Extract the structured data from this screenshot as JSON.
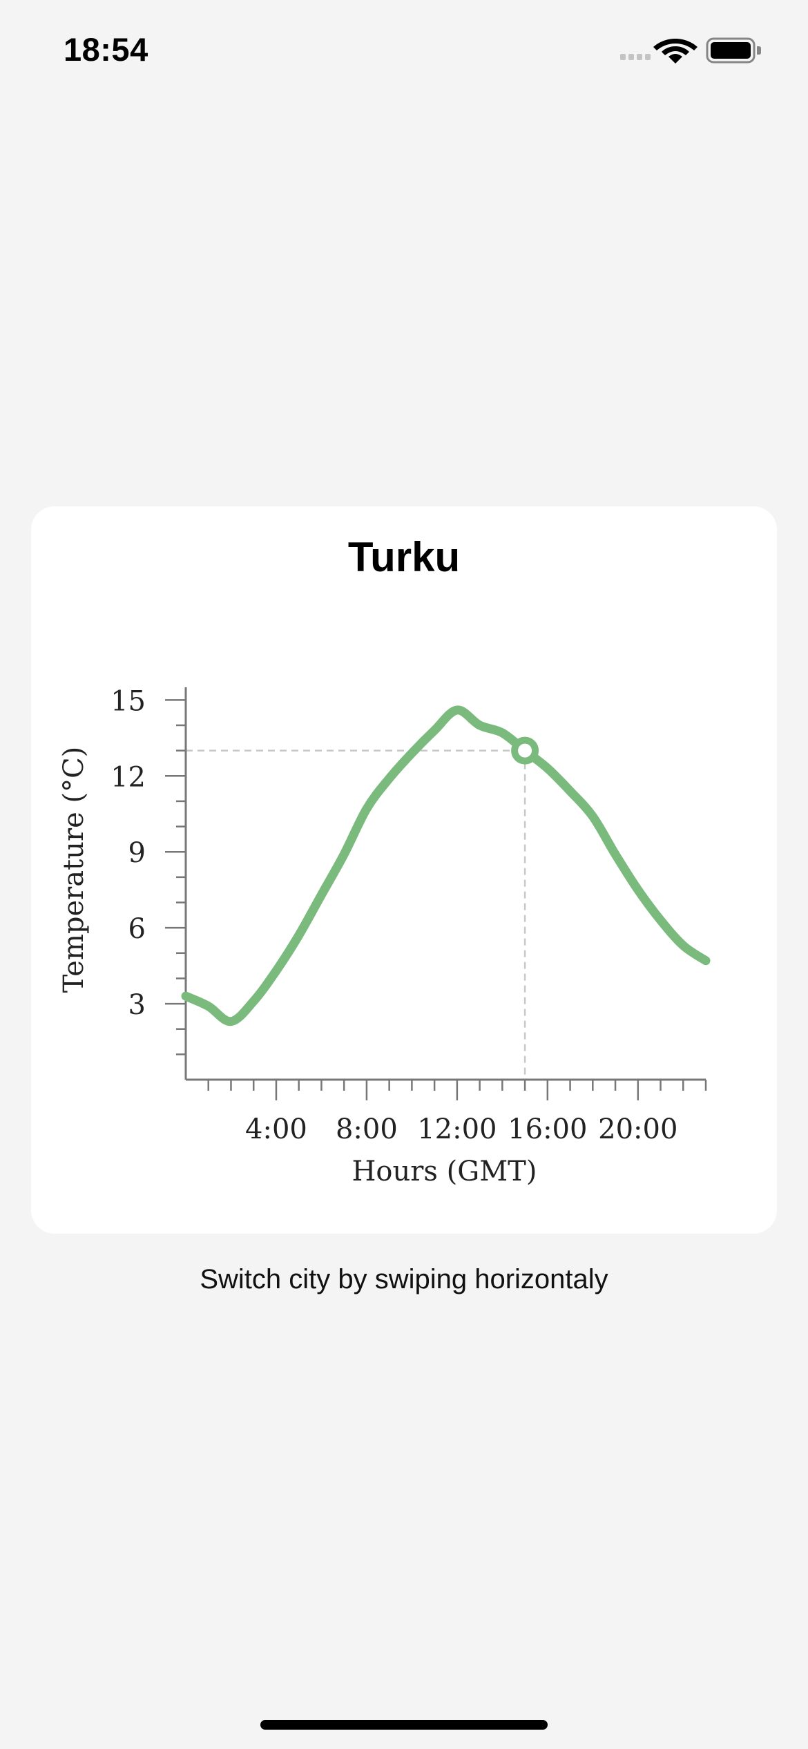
{
  "status_bar": {
    "time": "18:54",
    "icons": [
      "cellular-signal-icon",
      "wifi-icon",
      "battery-icon"
    ]
  },
  "card": {
    "title": "Turku"
  },
  "hint": "Switch city by swiping horizontaly",
  "colors": {
    "line": "#7aba7d",
    "axis": "#777777",
    "crosshair": "#c8c8c8",
    "background": "#f4f4f4",
    "card": "#ffffff"
  },
  "chart_data": {
    "type": "line",
    "title": "",
    "xlabel": "Hours (GMT)",
    "ylabel": "Temperature (°C)",
    "xlim": [
      0,
      23
    ],
    "ylim": [
      0,
      15.5
    ],
    "x_ticks": [
      4,
      8,
      12,
      16,
      20
    ],
    "x_tick_labels": [
      "4:00",
      "8:00",
      "12:00",
      "16:00",
      "20:00"
    ],
    "y_ticks": [
      3,
      6,
      9,
      12,
      15
    ],
    "y_tick_labels": [
      "3",
      "6",
      "9",
      "12",
      "15"
    ],
    "x_minor_step": 1,
    "y_minor_step": 1,
    "grid": false,
    "series": [
      {
        "x": [
          0,
          1,
          2,
          3,
          4,
          5,
          6,
          7,
          8,
          9,
          10,
          11,
          12,
          13,
          14,
          15,
          16,
          17,
          18,
          19,
          20,
          21,
          22,
          23
        ],
        "values": [
          3.3,
          2.9,
          2.3,
          3.1,
          4.3,
          5.7,
          7.3,
          8.9,
          10.7,
          11.9,
          12.9,
          13.8,
          14.6,
          14.0,
          13.7,
          13.0,
          12.3,
          11.4,
          10.4,
          8.9,
          7.5,
          6.3,
          5.3,
          4.7
        ]
      }
    ],
    "highlight": {
      "x": 15,
      "y": 13.0
    }
  }
}
